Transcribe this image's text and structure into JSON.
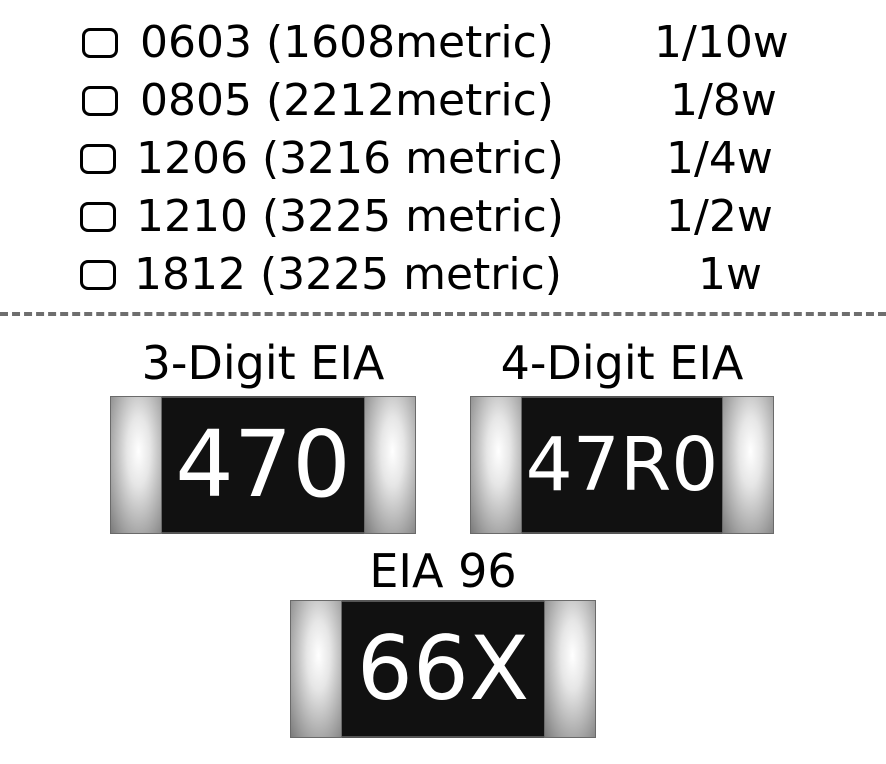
{
  "sizes": [
    {
      "package": "0603 (1608metric)",
      "power": "1/10w"
    },
    {
      "package": "0805 (2212metric)",
      "power": "1/8w"
    },
    {
      "package": "1206 (3216 metric)",
      "power": "1/4w"
    },
    {
      "package": "1210 (3225 metric)",
      "power": "1/2w"
    },
    {
      "package": "1812 (3225 metric)",
      "power": "1w"
    }
  ],
  "codes": {
    "three_digit": {
      "label": "3-Digit EIA",
      "marking": "470"
    },
    "four_digit": {
      "label": "4-Digit EIA",
      "marking": "47R0"
    },
    "eia96": {
      "label": "EIA 96",
      "marking": "66X"
    }
  },
  "colors": {
    "resistor_body": "#111111",
    "marking_text": "#ffffff",
    "divider": "#6e6e6e"
  }
}
